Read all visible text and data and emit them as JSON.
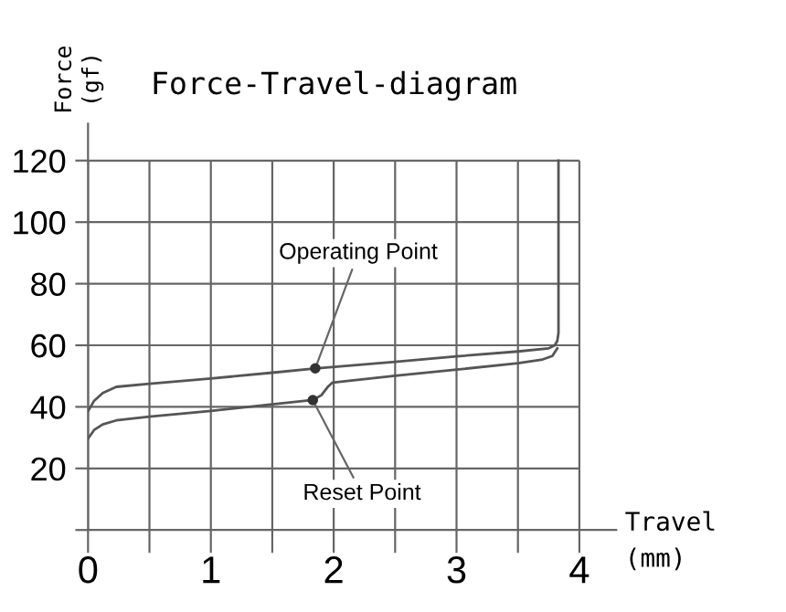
{
  "chart_data": {
    "type": "line",
    "title": "Force-Travel-diagram",
    "xlabel": "Travel\n(mm)",
    "ylabel": "Force\n(gf)",
    "series": [
      {
        "color": "#555555",
        "x": [
          0,
          0.05,
          0.12,
          0.23,
          0.5,
          1.0,
          1.5,
          1.85,
          2.5,
          3.0,
          3.5,
          3.75,
          3.8,
          3.82,
          3.83,
          3.83
        ],
        "values": [
          38.6,
          42,
          44.5,
          46.5,
          47.5,
          49.2,
          51.1,
          52.5,
          54.6,
          56.4,
          58,
          59,
          60,
          61.4,
          64,
          120
        ]
      },
      {
        "color": "#555555",
        "x": [
          0,
          0.05,
          0.12,
          0.23,
          0.5,
          1.0,
          1.5,
          1.83,
          1.9,
          1.95,
          1.99,
          2.5,
          3.0,
          3.5,
          3.7,
          3.78,
          3.82
        ],
        "values": [
          29.7,
          32.5,
          34.3,
          35.6,
          36.8,
          38.7,
          40.8,
          42.2,
          43.8,
          46.4,
          47.9,
          50.1,
          52.1,
          54.2,
          55.4,
          56.5,
          59
        ]
      },
      {
        "type": "scatter",
        "marker": "circle",
        "color": "#333333",
        "x": [
          1.85,
          1.83
        ],
        "values": [
          52.5,
          42.2
        ]
      }
    ],
    "annotations": [
      {
        "text": "Operating Point",
        "x": 1.85,
        "y": 52.5
      },
      {
        "text": "Reset Point",
        "x": 1.83,
        "y": 42.2
      }
    ],
    "xlim": [
      0,
      4.3
    ],
    "ylim": [
      0,
      132
    ],
    "xticks": [
      0,
      {
        "value": 0.5,
        "label": null
      },
      1,
      {
        "value": 1.5,
        "label": null
      },
      2,
      {
        "value": 2.5,
        "label": null
      },
      3,
      {
        "value": 3.5,
        "label": null
      },
      4
    ],
    "yticks": [
      {
        "value": 0,
        "label": null
      },
      20,
      40,
      60,
      80,
      100,
      120
    ],
    "grid": true,
    "marker": "none",
    "line_style": "solid"
  }
}
